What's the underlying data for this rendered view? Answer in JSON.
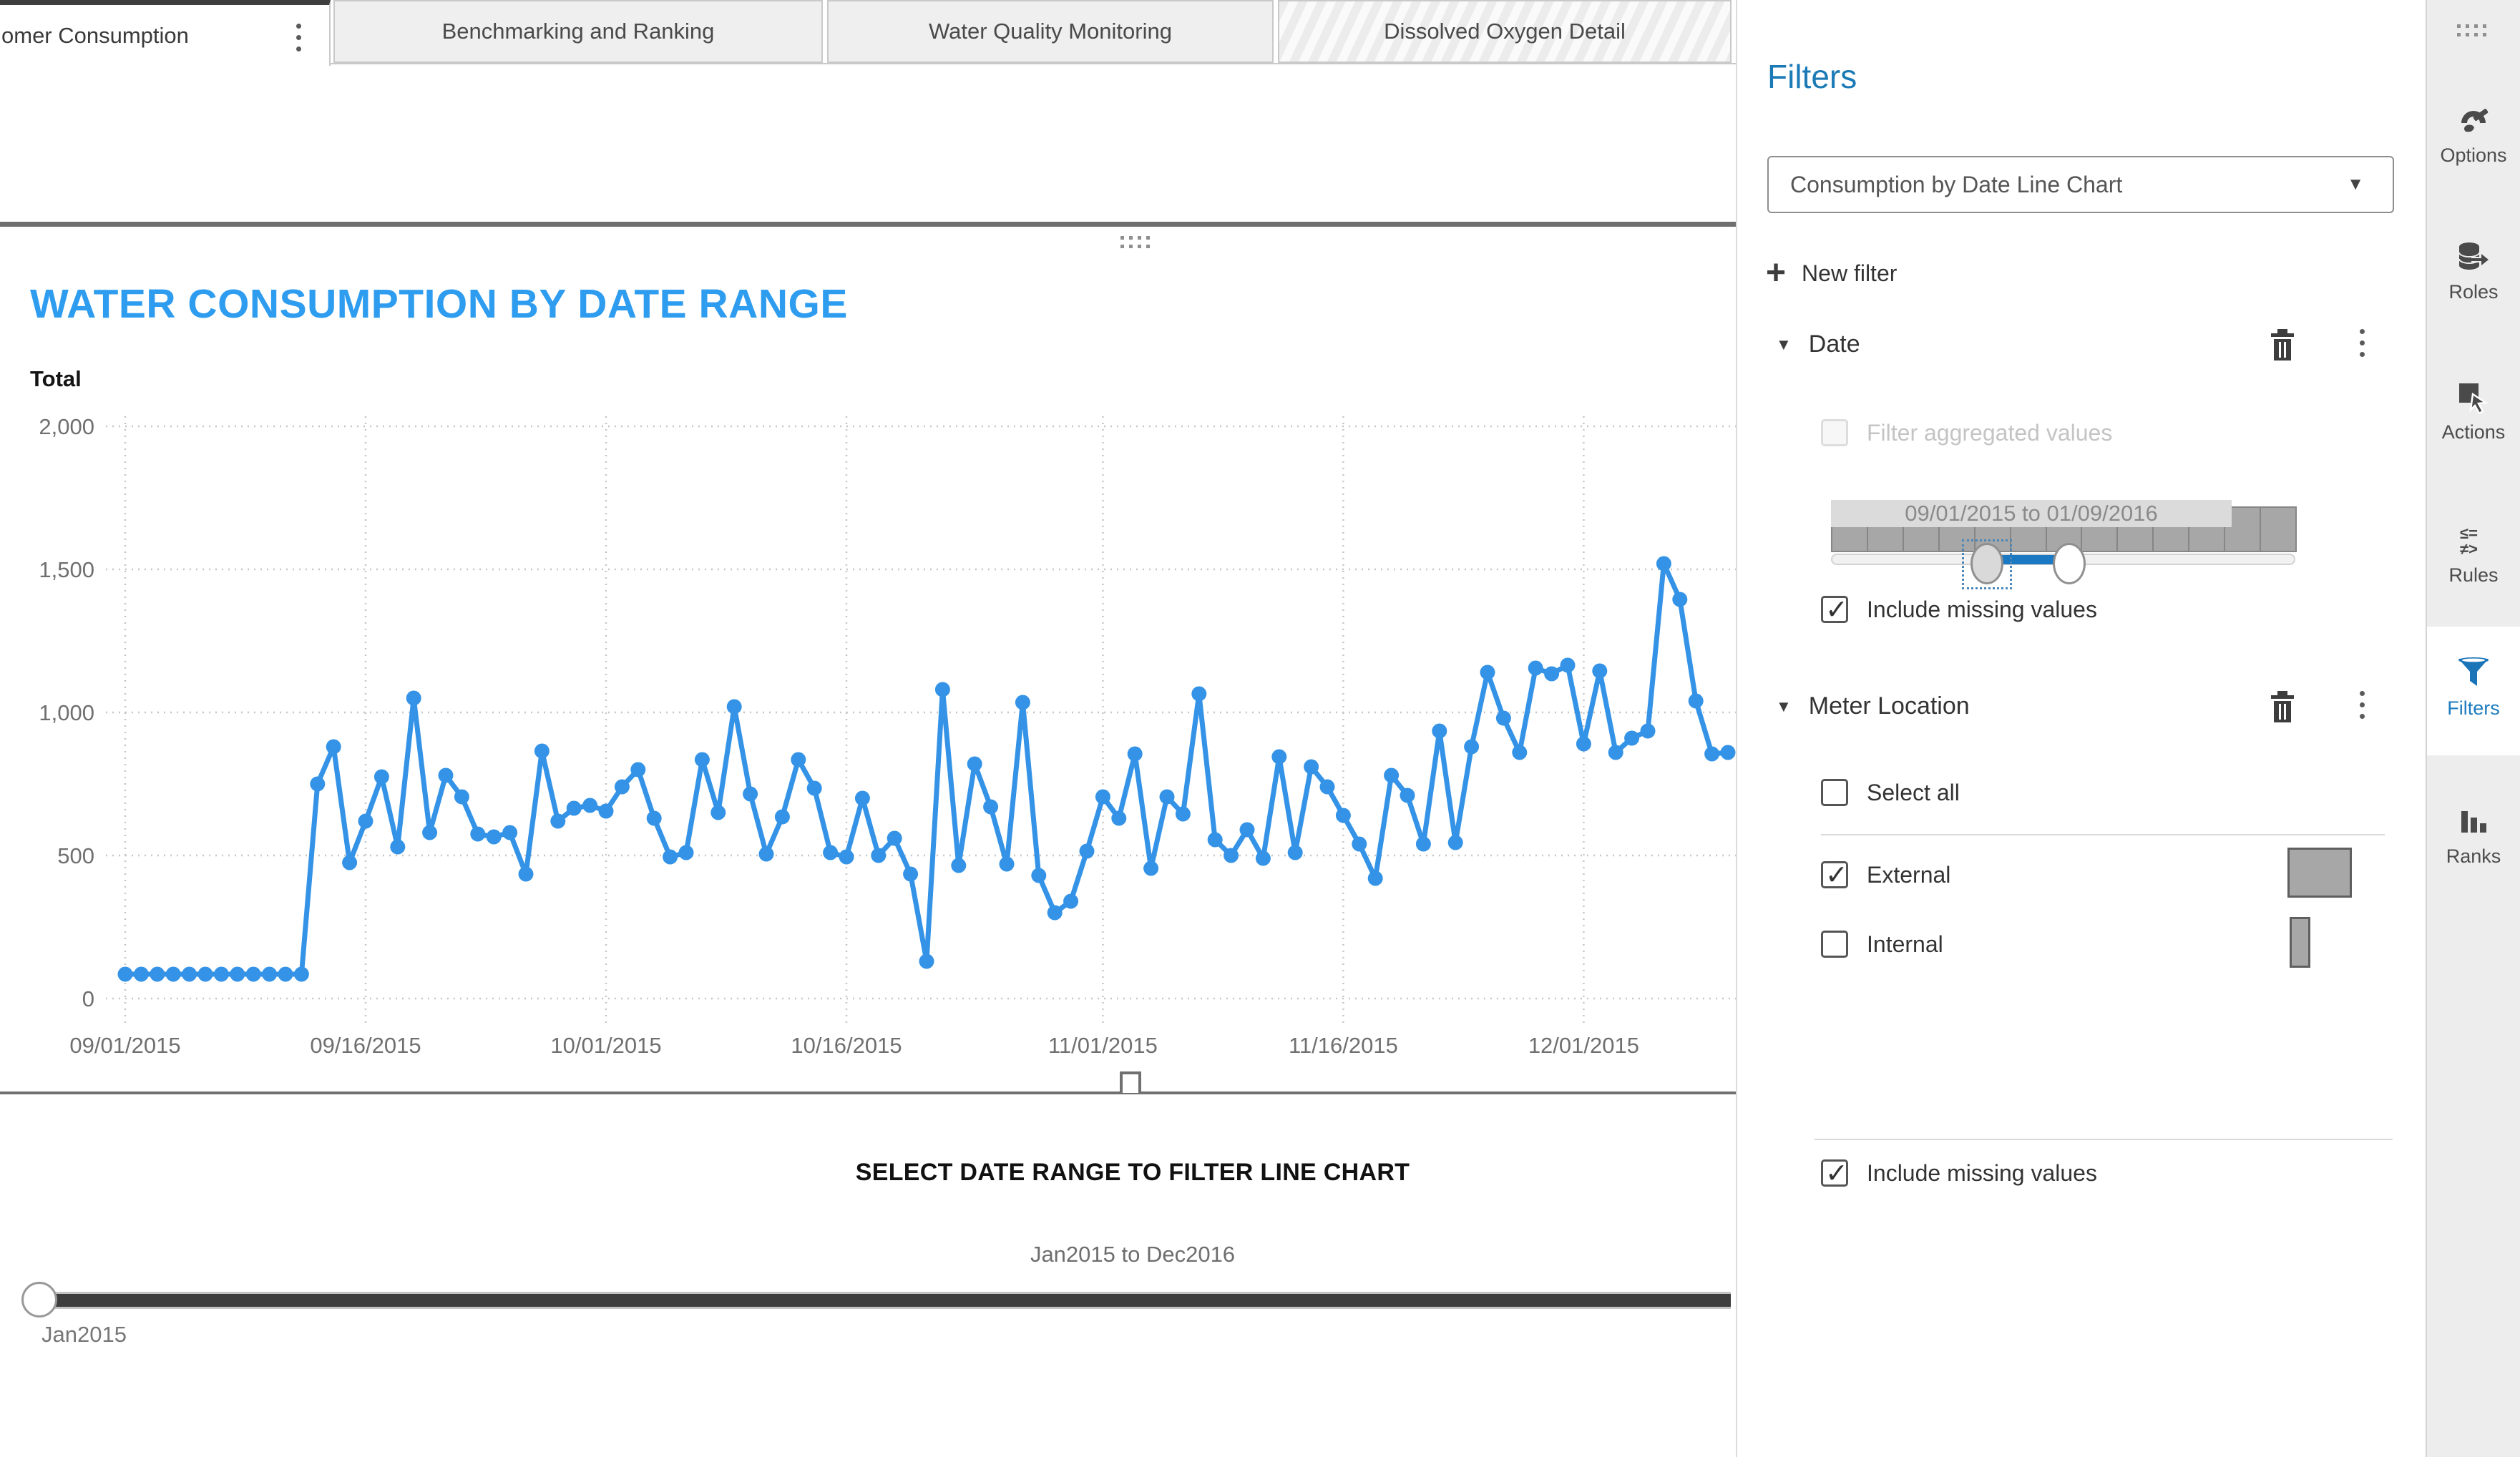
{
  "tabs": [
    {
      "label": "omer Consumption",
      "active": true
    },
    {
      "label": "Benchmarking and Ranking",
      "active": false
    },
    {
      "label": "Water Quality Monitoring",
      "active": false
    },
    {
      "label": "Dissolved Oxygen Detail",
      "active": false
    }
  ],
  "chart": {
    "title": "WATER CONSUMPTION BY DATE RANGE",
    "y_axis_title": "Total",
    "line_color": "#3493E6",
    "grid_color": "#c6c6c6",
    "tick_color": "#6f6f6f"
  },
  "chart_data": {
    "type": "line",
    "series_name": "Total",
    "x_start": "09/01/2015",
    "x_end": "12/10/2015",
    "frequency": "daily",
    "xlabel": "",
    "ylabel": "Total",
    "ylim": [
      0,
      2000
    ],
    "y_ticks": [
      0,
      500,
      1000,
      1500,
      2000
    ],
    "y_tick_labels": [
      "0",
      "500",
      "1,000",
      "1,500",
      "2,000"
    ],
    "x_tick_labels": [
      "09/01/2015",
      "09/16/2015",
      "10/01/2015",
      "10/16/2015",
      "11/01/2015",
      "11/16/2015",
      "12/01/2015"
    ],
    "x_tick_day_offsets": [
      0,
      15,
      30,
      45,
      61,
      76,
      91
    ],
    "grid": true,
    "values": [
      85,
      85,
      85,
      85,
      85,
      85,
      85,
      85,
      85,
      85,
      85,
      85,
      750,
      880,
      475,
      620,
      775,
      530,
      1050,
      580,
      780,
      705,
      575,
      565,
      580,
      435,
      865,
      620,
      665,
      675,
      655,
      740,
      800,
      630,
      495,
      510,
      835,
      650,
      1020,
      715,
      505,
      635,
      835,
      735,
      510,
      495,
      700,
      500,
      560,
      435,
      130,
      1080,
      465,
      820,
      670,
      470,
      1035,
      430,
      300,
      340,
      515,
      705,
      630,
      855,
      455,
      705,
      645,
      1065,
      555,
      500,
      590,
      490,
      845,
      510,
      810,
      740,
      640,
      540,
      420,
      780,
      710,
      540,
      935,
      545,
      880,
      1140,
      980,
      860,
      1155,
      1135,
      1165,
      890,
      1145,
      860,
      910,
      935,
      1520,
      1395,
      1040,
      855,
      860
    ]
  },
  "range_selector": {
    "title": "SELECT DATE RANGE TO FILTER LINE CHART",
    "range_label": "Jan2015 to Dec2016",
    "handle_label": "Jan2015"
  },
  "filters_panel": {
    "title": "Filters",
    "target_selector_value": "Consumption by Date Line Chart",
    "new_filter_label": "New filter",
    "date_filter": {
      "name": "Date",
      "aggregated_label": "Filter aggregated values",
      "aggregated_checked": false,
      "range_label": "09/01/2015 to 01/09/2016",
      "histogram_bar_count": 13,
      "include_missing_label": "Include missing values",
      "include_missing_checked": true
    },
    "meter_filter": {
      "name": "Meter Location",
      "select_all_label": "Select all",
      "select_all_checked": false,
      "options": [
        {
          "label": "External",
          "checked": true
        },
        {
          "label": "Internal",
          "checked": false
        }
      ],
      "include_missing_label": "Include missing values",
      "include_missing_checked": true
    }
  },
  "sidebar": {
    "items": [
      {
        "label": "Options",
        "active": false
      },
      {
        "label": "Roles",
        "active": false
      },
      {
        "label": "Actions",
        "active": false
      },
      {
        "label": "Rules",
        "active": false
      },
      {
        "label": "Filters",
        "active": true
      },
      {
        "label": "Ranks",
        "active": false
      }
    ]
  }
}
